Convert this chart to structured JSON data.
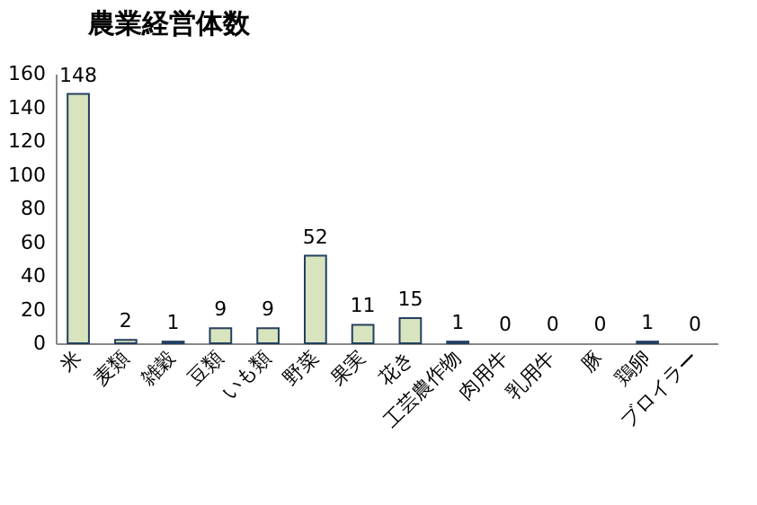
{
  "chart_data": {
    "type": "bar",
    "title": "農業経営体数",
    "categories": [
      "米",
      "麦類",
      "雑穀",
      "豆類",
      "いも類",
      "野菜",
      "果実",
      "花き",
      "工芸農作物",
      "肉用牛",
      "乳用牛",
      "豚",
      "鶏卵",
      "ブロイラー"
    ],
    "values": [
      148,
      2,
      1,
      9,
      9,
      52,
      11,
      15,
      1,
      0,
      0,
      0,
      1,
      0
    ],
    "color": "#d7e4bd",
    "ylim": [
      0,
      160
    ],
    "yticks": [
      0,
      20,
      40,
      60,
      80,
      100,
      120,
      140,
      160
    ],
    "data_labels": true,
    "grid": false
  }
}
